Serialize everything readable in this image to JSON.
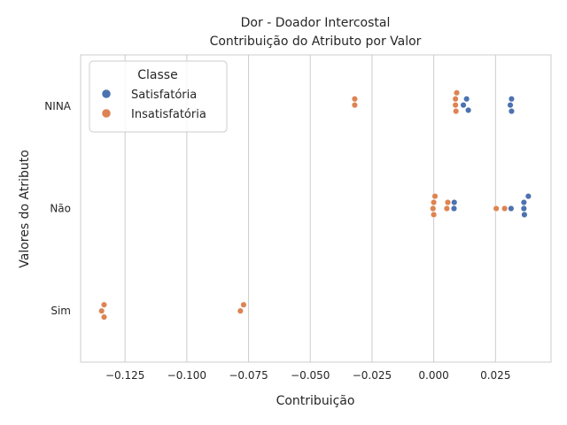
{
  "chart_data": {
    "type": "scatter",
    "title": "Dor - Doador Intercostal",
    "subtitle": "Contribuição do Atributo por Valor",
    "xlabel": "Contribuição",
    "ylabel": "Valores do Atributo",
    "categories": [
      "NINA",
      "Não",
      "Sim"
    ],
    "xlim": [
      -0.143,
      0.0475
    ],
    "xticks": [
      -0.125,
      -0.1,
      -0.075,
      -0.05,
      -0.025,
      0.0,
      0.025
    ],
    "xtick_labels": [
      "−0.125",
      "−0.100",
      "−0.075",
      "−0.050",
      "−0.025",
      "0.000",
      "0.025"
    ],
    "grid": true,
    "legend": {
      "title": "Classe",
      "placement": "top-left",
      "entries": [
        "Satisfatória",
        "Insatisfatória"
      ]
    },
    "series": [
      {
        "name": "Satisfatória",
        "color": "#4c72b0",
        "points": [
          {
            "category": "NINA",
            "x": 0.0133,
            "offset": -0.07
          },
          {
            "category": "NINA",
            "x": 0.012,
            "offset": -0.01
          },
          {
            "category": "NINA",
            "x": 0.014,
            "offset": 0.04
          },
          {
            "category": "NINA",
            "x": 0.0315,
            "offset": -0.07
          },
          {
            "category": "NINA",
            "x": 0.031,
            "offset": -0.01
          },
          {
            "category": "NINA",
            "x": 0.0315,
            "offset": 0.05
          },
          {
            "category": "Não",
            "x": 0.0383,
            "offset": -0.12
          },
          {
            "category": "Não",
            "x": 0.0365,
            "offset": -0.06
          },
          {
            "category": "Não",
            "x": 0.0365,
            "offset": 0.0
          },
          {
            "category": "Não",
            "x": 0.0367,
            "offset": 0.06
          },
          {
            "category": "Não",
            "x": 0.0313,
            "offset": 0.0
          },
          {
            "category": "Não",
            "x": 0.0083,
            "offset": -0.06
          },
          {
            "category": "Não",
            "x": 0.0082,
            "offset": 0.0
          }
        ]
      },
      {
        "name": "Insatisfatória",
        "color": "#dd8452",
        "points": [
          {
            "category": "NINA",
            "x": 0.0093,
            "offset": -0.13
          },
          {
            "category": "NINA",
            "x": 0.0088,
            "offset": -0.07
          },
          {
            "category": "NINA",
            "x": 0.0088,
            "offset": -0.01
          },
          {
            "category": "NINA",
            "x": 0.009,
            "offset": 0.05
          },
          {
            "category": "NINA",
            "x": -0.032,
            "offset": -0.07
          },
          {
            "category": "NINA",
            "x": -0.032,
            "offset": -0.01
          },
          {
            "category": "Não",
            "x": 0.0005,
            "offset": -0.12
          },
          {
            "category": "Não",
            "x": 0.0,
            "offset": -0.06
          },
          {
            "category": "Não",
            "x": -0.0003,
            "offset": 0.0
          },
          {
            "category": "Não",
            "x": 0.0,
            "offset": 0.06
          },
          {
            "category": "Não",
            "x": 0.0057,
            "offset": -0.06
          },
          {
            "category": "Não",
            "x": 0.0053,
            "offset": 0.0
          },
          {
            "category": "Não",
            "x": 0.0253,
            "offset": 0.0
          },
          {
            "category": "Não",
            "x": 0.0287,
            "offset": 0.0
          },
          {
            "category": "Sim",
            "x": -0.1335,
            "offset": -0.06
          },
          {
            "category": "Sim",
            "x": -0.1345,
            "offset": 0.0
          },
          {
            "category": "Sim",
            "x": -0.1335,
            "offset": 0.06
          },
          {
            "category": "Sim",
            "x": -0.077,
            "offset": -0.06
          },
          {
            "category": "Sim",
            "x": -0.0783,
            "offset": 0.0
          }
        ]
      }
    ]
  }
}
